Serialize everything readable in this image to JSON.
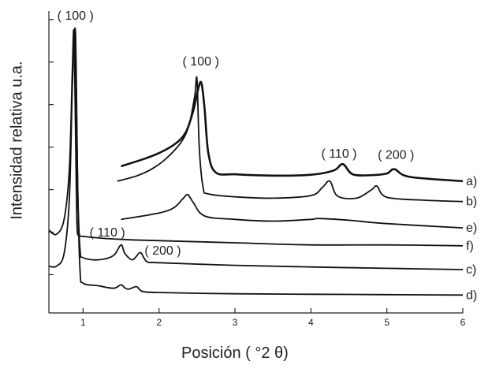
{
  "chart_data": {
    "type": "line",
    "xlabel": "Posición  ( °2 θ)",
    "ylabel": "Intensidad relativa u.a.",
    "xlim": [
      0.55,
      6
    ],
    "xticks": [
      1,
      2,
      3,
      4,
      5,
      6
    ],
    "grid": false,
    "series": [
      {
        "name": "a)",
        "x": [
          1.5,
          1.8,
          2.0,
          2.2,
          2.35,
          2.45,
          2.52,
          2.56,
          2.6,
          2.65,
          2.75,
          3.0,
          3.5,
          4.0,
          4.3,
          4.42,
          4.55,
          4.8,
          5.0,
          5.1,
          5.3,
          6.0
        ],
        "y": [
          6.55,
          6.72,
          6.86,
          7.06,
          7.34,
          7.85,
          8.4,
          8.5,
          7.9,
          6.85,
          6.4,
          6.36,
          6.33,
          6.35,
          6.45,
          6.6,
          6.36,
          6.34,
          6.38,
          6.48,
          6.3,
          6.2
        ]
      },
      {
        "name": "b)",
        "x": [
          1.45,
          1.7,
          1.9,
          2.1,
          2.3,
          2.4,
          2.47,
          2.5,
          2.53,
          2.58,
          2.65,
          3.0,
          3.5,
          4.0,
          4.15,
          4.25,
          4.35,
          4.6,
          4.8,
          4.87,
          5.0,
          5.5,
          6.0
        ],
        "y": [
          6.2,
          6.32,
          6.48,
          6.74,
          7.14,
          7.55,
          8.2,
          8.6,
          7.0,
          6.05,
          5.9,
          5.83,
          5.8,
          5.86,
          6.05,
          6.2,
          5.85,
          5.8,
          6.0,
          6.08,
          5.82,
          5.75,
          5.72
        ]
      },
      {
        "name": "e)",
        "x": [
          1.5,
          2.0,
          2.2,
          2.32,
          2.38,
          2.45,
          2.6,
          3.0,
          3.5,
          4.0,
          4.1,
          4.5,
          5.0,
          6.0
        ],
        "y": [
          5.3,
          5.45,
          5.58,
          5.8,
          5.88,
          5.7,
          5.38,
          5.3,
          5.26,
          5.3,
          5.32,
          5.28,
          5.2,
          5.1
        ]
      },
      {
        "name": "f)",
        "x": [
          0.55,
          0.65,
          0.75,
          0.82,
          0.86,
          0.88,
          0.9,
          0.92,
          0.95,
          1.0,
          1.5,
          2.0,
          3.0,
          4.0,
          5.0,
          6.0
        ],
        "y": [
          5.05,
          4.95,
          5.3,
          6.5,
          8.9,
          9.7,
          7.5,
          5.2,
          4.95,
          4.9,
          4.83,
          4.8,
          4.75,
          4.7,
          4.7,
          4.68
        ]
      },
      {
        "name": "c)",
        "x": [
          0.55,
          0.65,
          0.75,
          0.82,
          0.86,
          0.9,
          0.93,
          0.96,
          1.0,
          1.2,
          1.4,
          1.5,
          1.55,
          1.65,
          1.75,
          1.8,
          1.85,
          2.0,
          3.0,
          4.0,
          5.0,
          6.0
        ],
        "y": [
          4.2,
          4.2,
          4.5,
          5.8,
          8.5,
          9.7,
          6.0,
          4.6,
          4.4,
          4.35,
          4.45,
          4.7,
          4.5,
          4.35,
          4.52,
          4.4,
          4.3,
          4.28,
          4.22,
          4.18,
          4.15,
          4.12
        ]
      },
      {
        "name": "d)",
        "x": [
          0.9,
          0.93,
          0.96,
          1.0,
          1.2,
          1.4,
          1.5,
          1.55,
          1.6,
          1.7,
          1.75,
          1.8,
          2.0,
          3.0,
          4.0,
          5.0,
          6.0
        ],
        "y": [
          9.7,
          6.0,
          4.1,
          3.8,
          3.74,
          3.68,
          3.76,
          3.69,
          3.66,
          3.72,
          3.64,
          3.6,
          3.58,
          3.55,
          3.54,
          3.53,
          3.52
        ]
      }
    ],
    "annotations": [
      {
        "text": "( 100 )",
        "x": 0.9,
        "y": 10.0
      },
      {
        "text": "( 100 )",
        "x": 2.55,
        "y": 8.92
      },
      {
        "text": "( 110 )",
        "x": 4.37,
        "y": 6.75
      },
      {
        "text": "( 200 )",
        "x": 5.12,
        "y": 6.72
      },
      {
        "text": "( 110 )",
        "x": 1.32,
        "y": 4.9
      },
      {
        "text": "( 200 )",
        "x": 2.05,
        "y": 4.47
      }
    ]
  }
}
